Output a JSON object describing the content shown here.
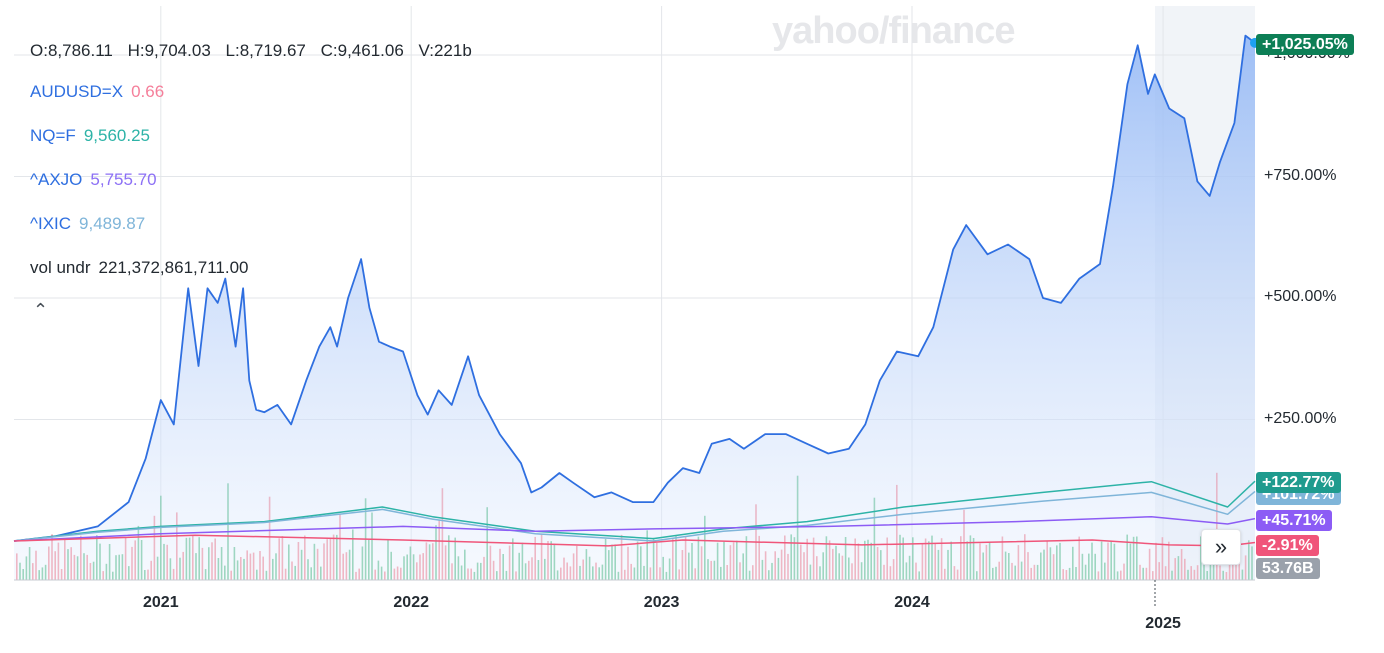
{
  "watermark": "yahoo/finance",
  "ohlc": {
    "open": "O:8,786.11",
    "high": "H:9,704.03",
    "low": "L:8,719.67",
    "close": "C:9,461.06",
    "volume": "V:221b"
  },
  "legend": [
    {
      "symbol": "AUDUSD=X",
      "value": "0.66",
      "color": "#f57f9a"
    },
    {
      "symbol": "NQ=F",
      "value": "9,560.25",
      "color": "#2db3a7"
    },
    {
      "symbol": "^AXJO",
      "value": "5,755.70",
      "color": "#8c70f5"
    },
    {
      "symbol": "^IXIC",
      "value": "9,489.87",
      "color": "#7fb5d9"
    },
    {
      "symbol": "vol undr",
      "value": "221,372,861,711.00",
      "color": "#232a31"
    }
  ],
  "collapse_icon": "chevron-up-icon",
  "scroll_icon": "double-chevron-right-icon",
  "badges": [
    {
      "label": "+1,025.05%",
      "color": "#0d7f56"
    },
    {
      "label": "+122.77%",
      "color": "#1f9b8e"
    },
    {
      "label": "+101.72%",
      "color": "#7fb5d9"
    },
    {
      "label": "+45.71%",
      "color": "#8c5cf5"
    },
    {
      "label": "-2.91%",
      "color": "#f0557a"
    },
    {
      "label": "53.76B",
      "color": "#9aa1ab"
    }
  ],
  "chart_data": {
    "type": "line",
    "x_unit": "date",
    "y_unit": "percent change",
    "ylim": [
      -30,
      1080
    ],
    "y_ticks": [
      {
        "value": 1000,
        "label": "+1,000.00%"
      },
      {
        "value": 750,
        "label": "+750.00%"
      },
      {
        "value": 500,
        "label": "+500.00%"
      },
      {
        "value": 250,
        "label": "+250.00%"
      }
    ],
    "x_range": [
      "2020-06-01",
      "2025-05-15"
    ],
    "x_ticks": [
      {
        "date": "2021-01-01",
        "label": "2021"
      },
      {
        "date": "2022-01-01",
        "label": "2022"
      },
      {
        "date": "2023-01-01",
        "label": "2023"
      },
      {
        "date": "2024-01-01",
        "label": "2024"
      },
      {
        "date": "2025-01-01",
        "label": "2025"
      }
    ],
    "grid": true,
    "series": [
      {
        "name": "vol undr",
        "color": "#2f6fe0",
        "fill": true,
        "points": [
          [
            "2020-06-01",
            0
          ],
          [
            "2020-08-01",
            10
          ],
          [
            "2020-10-01",
            30
          ],
          [
            "2020-11-15",
            80
          ],
          [
            "2020-12-10",
            170
          ],
          [
            "2021-01-01",
            290
          ],
          [
            "2021-01-20",
            240
          ],
          [
            "2021-02-10",
            520
          ],
          [
            "2021-02-25",
            360
          ],
          [
            "2021-03-10",
            520
          ],
          [
            "2021-03-25",
            490
          ],
          [
            "2021-04-05",
            540
          ],
          [
            "2021-04-20",
            400
          ],
          [
            "2021-05-01",
            520
          ],
          [
            "2021-05-10",
            330
          ],
          [
            "2021-05-20",
            270
          ],
          [
            "2021-06-01",
            265
          ],
          [
            "2021-06-20",
            280
          ],
          [
            "2021-07-10",
            240
          ],
          [
            "2021-08-01",
            330
          ],
          [
            "2021-08-20",
            400
          ],
          [
            "2021-09-05",
            440
          ],
          [
            "2021-09-15",
            400
          ],
          [
            "2021-10-01",
            500
          ],
          [
            "2021-10-20",
            580
          ],
          [
            "2021-11-01",
            480
          ],
          [
            "2021-11-15",
            410
          ],
          [
            "2021-12-01",
            400
          ],
          [
            "2021-12-20",
            390
          ],
          [
            "2022-01-10",
            300
          ],
          [
            "2022-01-25",
            260
          ],
          [
            "2022-02-10",
            310
          ],
          [
            "2022-03-01",
            280
          ],
          [
            "2022-03-25",
            380
          ],
          [
            "2022-04-10",
            300
          ],
          [
            "2022-05-10",
            220
          ],
          [
            "2022-06-10",
            160
          ],
          [
            "2022-06-25",
            100
          ],
          [
            "2022-07-10",
            110
          ],
          [
            "2022-08-05",
            140
          ],
          [
            "2022-08-25",
            120
          ],
          [
            "2022-09-25",
            90
          ],
          [
            "2022-10-20",
            100
          ],
          [
            "2022-11-20",
            80
          ],
          [
            "2022-12-20",
            80
          ],
          [
            "2023-01-10",
            120
          ],
          [
            "2023-02-01",
            150
          ],
          [
            "2023-02-25",
            140
          ],
          [
            "2023-03-15",
            200
          ],
          [
            "2023-04-10",
            210
          ],
          [
            "2023-05-01",
            190
          ],
          [
            "2023-06-01",
            220
          ],
          [
            "2023-07-01",
            220
          ],
          [
            "2023-08-01",
            200
          ],
          [
            "2023-09-01",
            180
          ],
          [
            "2023-10-01",
            190
          ],
          [
            "2023-10-25",
            240
          ],
          [
            "2023-11-15",
            330
          ],
          [
            "2023-12-10",
            390
          ],
          [
            "2024-01-10",
            380
          ],
          [
            "2024-02-01",
            440
          ],
          [
            "2024-03-01",
            600
          ],
          [
            "2024-03-20",
            650
          ],
          [
            "2024-04-20",
            590
          ],
          [
            "2024-05-20",
            610
          ],
          [
            "2024-06-20",
            580
          ],
          [
            "2024-07-10",
            500
          ],
          [
            "2024-08-05",
            490
          ],
          [
            "2024-09-01",
            540
          ],
          [
            "2024-10-01",
            570
          ],
          [
            "2024-10-20",
            730
          ],
          [
            "2024-11-10",
            940
          ],
          [
            "2024-11-25",
            1020
          ],
          [
            "2024-12-10",
            920
          ],
          [
            "2024-12-20",
            960
          ],
          [
            "2025-01-10",
            890
          ],
          [
            "2025-02-01",
            870
          ],
          [
            "2025-02-20",
            740
          ],
          [
            "2025-03-10",
            710
          ],
          [
            "2025-03-25",
            780
          ],
          [
            "2025-04-15",
            860
          ],
          [
            "2025-05-01",
            1040
          ],
          [
            "2025-05-15",
            1025
          ]
        ]
      },
      {
        "name": "NQ=F",
        "color": "#2db3a7",
        "points": [
          [
            "2020-06-01",
            0
          ],
          [
            "2020-10-01",
            20
          ],
          [
            "2021-01-01",
            30
          ],
          [
            "2021-06-01",
            40
          ],
          [
            "2021-11-20",
            70
          ],
          [
            "2022-02-01",
            50
          ],
          [
            "2022-07-01",
            20
          ],
          [
            "2022-12-20",
            5
          ],
          [
            "2023-04-01",
            25
          ],
          [
            "2023-08-01",
            40
          ],
          [
            "2023-12-20",
            70
          ],
          [
            "2024-07-10",
            100
          ],
          [
            "2024-12-15",
            122
          ],
          [
            "2025-04-05",
            70
          ],
          [
            "2025-05-15",
            123
          ]
        ]
      },
      {
        "name": "^IXIC",
        "color": "#7fb5d9",
        "points": [
          [
            "2020-06-01",
            0
          ],
          [
            "2020-10-01",
            18
          ],
          [
            "2021-01-01",
            28
          ],
          [
            "2021-06-01",
            38
          ],
          [
            "2021-11-20",
            65
          ],
          [
            "2022-02-01",
            45
          ],
          [
            "2022-07-01",
            15
          ],
          [
            "2022-12-20",
            0
          ],
          [
            "2023-04-01",
            20
          ],
          [
            "2023-08-01",
            32
          ],
          [
            "2023-12-20",
            55
          ],
          [
            "2024-07-10",
            82
          ],
          [
            "2024-12-15",
            100
          ],
          [
            "2025-04-05",
            55
          ],
          [
            "2025-05-15",
            102
          ]
        ]
      },
      {
        "name": "^AXJO",
        "color": "#8c5cf5",
        "points": [
          [
            "2020-06-01",
            0
          ],
          [
            "2021-01-01",
            15
          ],
          [
            "2021-12-20",
            30
          ],
          [
            "2022-07-01",
            20
          ],
          [
            "2022-12-20",
            25
          ],
          [
            "2023-09-01",
            30
          ],
          [
            "2024-06-01",
            40
          ],
          [
            "2024-12-15",
            50
          ],
          [
            "2025-04-05",
            35
          ],
          [
            "2025-05-15",
            46
          ]
        ]
      },
      {
        "name": "AUDUSD=X",
        "color": "#f0557a",
        "points": [
          [
            "2020-06-01",
            0
          ],
          [
            "2021-02-20",
            12
          ],
          [
            "2021-12-20",
            2
          ],
          [
            "2022-10-15",
            -10
          ],
          [
            "2023-02-01",
            2
          ],
          [
            "2023-10-20",
            -8
          ],
          [
            "2024-09-20",
            2
          ],
          [
            "2025-01-10",
            -8
          ],
          [
            "2025-04-05",
            -10
          ],
          [
            "2025-05-15",
            -3
          ]
        ]
      }
    ]
  }
}
